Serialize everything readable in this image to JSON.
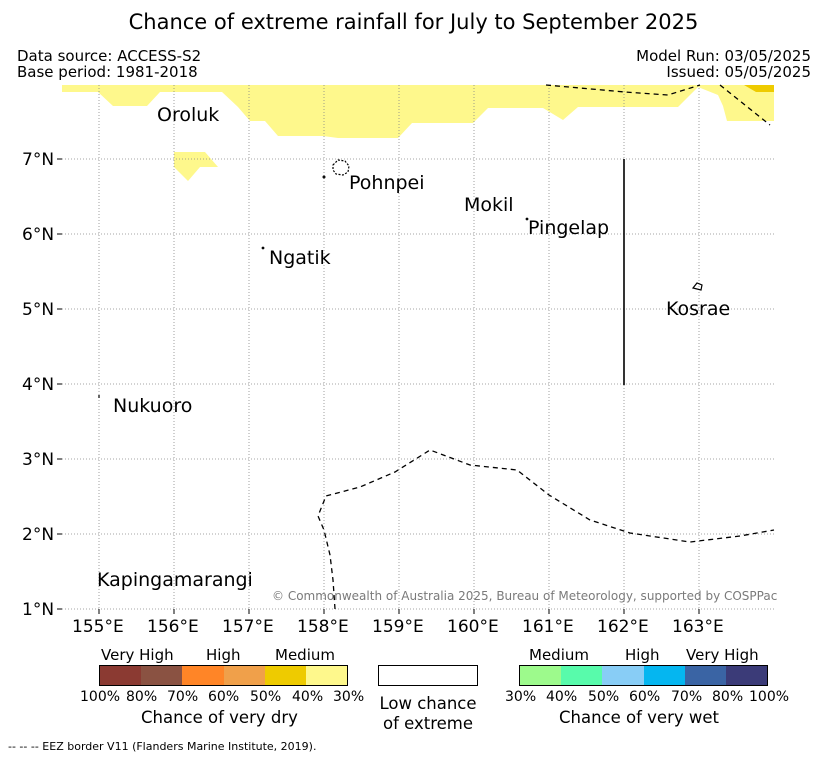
{
  "title": "Chance of extreme rainfall for July to September 2025",
  "info": {
    "data_source": "Data source: ACCESS-S2",
    "base_period": "Base period: 1981-2018",
    "model_run": "Model Run: 03/05/2025",
    "issued": "Issued: 05/05/2025"
  },
  "map": {
    "x_ticks": [
      "155°E",
      "156°E",
      "157°E",
      "158°E",
      "159°E",
      "160°E",
      "161°E",
      "162°E",
      "163°E"
    ],
    "y_ticks": [
      "7°N",
      "6°N",
      "5°N",
      "4°N",
      "3°N",
      "2°N",
      "1°N"
    ],
    "places": [
      {
        "name": "Oroluk"
      },
      {
        "name": "Pohnpei"
      },
      {
        "name": "Mokil"
      },
      {
        "name": "Pingelap"
      },
      {
        "name": "Ngatik"
      },
      {
        "name": "Kosrae"
      },
      {
        "name": "Nukuoro"
      },
      {
        "name": "Kapingamarangi"
      }
    ],
    "copyright": "© Commonwealth of Australia 2025, Bureau of Meteorology, supported by COSPPac"
  },
  "legend": {
    "dry": {
      "categories": [
        "Very High",
        "High",
        "Medium"
      ],
      "ticks": [
        "100%",
        "80%",
        "70%",
        "60%",
        "50%",
        "40%",
        "30%"
      ],
      "colors": [
        "#8b3a32",
        "#8a5242",
        "#ff8527",
        "#f0a04a",
        "#eecb00",
        "#fef88c"
      ],
      "caption": "Chance of very dry"
    },
    "neutral": {
      "caption_line1": "Low chance",
      "caption_line2": "of extreme"
    },
    "wet": {
      "categories": [
        "Medium",
        "High",
        "Very High"
      ],
      "ticks": [
        "30%",
        "40%",
        "50%",
        "60%",
        "70%",
        "80%",
        "100%"
      ],
      "colors": [
        "#9dfa8c",
        "#58fbab",
        "#88cdf6",
        "#05b6f0",
        "#3a64a4",
        "#3b3b78"
      ],
      "caption": "Chance of very wet"
    }
  },
  "footnote": "--  --  -- EEZ border V11 (Flanders Marine Institute, 2019)."
}
